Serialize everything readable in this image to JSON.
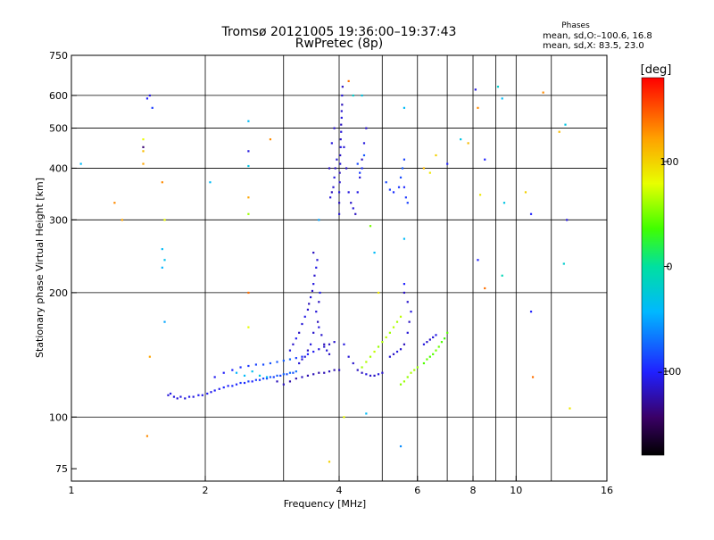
{
  "title": {
    "line1": "Tromsø 20121005 19:36:00–19:37:43",
    "line2": "RwPretec (8p)"
  },
  "phase_stats": {
    "heading": "Phases",
    "line1": "mean, sd,O:–100.6, 16.8",
    "line2": "mean, sd,X:  83.5, 23.0"
  },
  "colorbar": {
    "label": "[deg]",
    "range": [
      -180,
      180
    ],
    "ticks": [
      {
        "value": 100,
        "label": "100"
      },
      {
        "value": 0,
        "label": "0"
      },
      {
        "value": -100,
        "label": "–100"
      }
    ]
  },
  "chart_data": {
    "type": "scatter",
    "xlabel": "Frequency [MHz]",
    "ylabel": "Stationary phase Virtual Height [km]",
    "xscale": "log",
    "yscale": "log",
    "xlim": [
      1,
      16
    ],
    "ylim": [
      70,
      750
    ],
    "xticks": [
      {
        "value": 1,
        "label": "1"
      },
      {
        "value": 2,
        "label": "2"
      },
      {
        "value": 4,
        "label": "4"
      },
      {
        "value": 6,
        "label": "6"
      },
      {
        "value": 8,
        "label": "8"
      },
      {
        "value": 10,
        "label": "10"
      },
      {
        "value": 16,
        "label": "16"
      }
    ],
    "xgrid": [
      2,
      3,
      4,
      5,
      6,
      7,
      8,
      9,
      10,
      12
    ],
    "yticks": [
      {
        "value": 75,
        "label": "75"
      },
      {
        "value": 100,
        "label": "100"
      },
      {
        "value": 200,
        "label": "200"
      },
      {
        "value": 300,
        "label": "300"
      },
      {
        "value": 400,
        "label": "400"
      },
      {
        "value": 500,
        "label": "500"
      },
      {
        "value": 600,
        "label": "600"
      },
      {
        "value": 750,
        "label": "750"
      }
    ],
    "ygrid": [
      100,
      200,
      300,
      400,
      500,
      600
    ],
    "points": [
      [
        1.65,
        113,
        -112
      ],
      [
        1.67,
        114,
        -108
      ],
      [
        1.7,
        112,
        -110
      ],
      [
        1.73,
        111,
        -112
      ],
      [
        1.76,
        112,
        -109
      ],
      [
        1.8,
        111,
        -111
      ],
      [
        1.84,
        112,
        -106
      ],
      [
        1.88,
        112,
        -110
      ],
      [
        1.93,
        113,
        -104
      ],
      [
        1.97,
        113,
        -108
      ],
      [
        2.02,
        114,
        -103
      ],
      [
        2.06,
        115,
        -107
      ],
      [
        2.1,
        116,
        -101
      ],
      [
        2.15,
        117,
        -105
      ],
      [
        2.2,
        118,
        -98
      ],
      [
        2.25,
        119,
        -102
      ],
      [
        2.3,
        119,
        -95
      ],
      [
        2.35,
        120,
        -99
      ],
      [
        2.4,
        121,
        -92
      ],
      [
        2.45,
        121,
        -97
      ],
      [
        2.5,
        122,
        -90
      ],
      [
        2.55,
        122,
        -100
      ],
      [
        2.6,
        123,
        -88
      ],
      [
        2.65,
        123,
        -95
      ],
      [
        2.7,
        124,
        -85
      ],
      [
        2.75,
        124,
        -92
      ],
      [
        2.8,
        125,
        -80
      ],
      [
        2.85,
        125,
        -90
      ],
      [
        2.9,
        126,
        -78
      ],
      [
        2.95,
        126,
        -88
      ],
      [
        3.0,
        127,
        -75
      ],
      [
        3.05,
        127,
        -85
      ],
      [
        3.1,
        128,
        -72
      ],
      [
        3.15,
        128,
        -82
      ],
      [
        3.2,
        129,
        -70
      ],
      [
        2.1,
        125,
        -105
      ],
      [
        2.2,
        128,
        -102
      ],
      [
        2.3,
        130,
        -98
      ],
      [
        2.4,
        132,
        -95
      ],
      [
        2.5,
        133,
        -92
      ],
      [
        2.6,
        134,
        -88
      ],
      [
        2.7,
        134,
        -85
      ],
      [
        2.8,
        135,
        -82
      ],
      [
        2.9,
        136,
        -80
      ],
      [
        3.0,
        137,
        -78
      ],
      [
        3.1,
        138,
        -75
      ],
      [
        3.2,
        139,
        -90
      ],
      [
        3.3,
        140,
        -95
      ],
      [
        3.4,
        142,
        -100
      ],
      [
        3.5,
        144,
        -105
      ],
      [
        3.6,
        146,
        -110
      ],
      [
        3.7,
        148,
        -115
      ],
      [
        3.8,
        150,
        -118
      ],
      [
        3.9,
        152,
        -115
      ],
      [
        2.35,
        128,
        -45
      ],
      [
        2.45,
        126,
        -40
      ],
      [
        2.55,
        129,
        -35
      ],
      [
        2.65,
        126,
        -30
      ],
      [
        2.75,
        125,
        -38
      ],
      [
        2.9,
        122,
        -120
      ],
      [
        3.0,
        120,
        -118
      ],
      [
        3.1,
        122,
        -125
      ],
      [
        3.2,
        124,
        -122
      ],
      [
        3.3,
        125,
        -118
      ],
      [
        3.4,
        126,
        -124
      ],
      [
        3.5,
        127,
        -120
      ],
      [
        3.6,
        128,
        -126
      ],
      [
        3.7,
        128,
        -122
      ],
      [
        3.8,
        129,
        -119
      ],
      [
        3.9,
        130,
        -123
      ],
      [
        4.0,
        130,
        -120
      ],
      [
        3.1,
        145,
        -110
      ],
      [
        3.15,
        150,
        -115
      ],
      [
        3.2,
        155,
        -105
      ],
      [
        3.25,
        160,
        -118
      ],
      [
        3.3,
        168,
        -112
      ],
      [
        3.35,
        175,
        -108
      ],
      [
        3.4,
        182,
        -115
      ],
      [
        3.42,
        188,
        -120
      ],
      [
        3.45,
        195,
        -112
      ],
      [
        3.48,
        202,
        -118
      ],
      [
        3.5,
        210,
        -110
      ],
      [
        3.52,
        220,
        -115
      ],
      [
        3.55,
        230,
        -108
      ],
      [
        3.57,
        240,
        -112
      ],
      [
        3.5,
        250,
        -118
      ],
      [
        3.6,
        165,
        -110
      ],
      [
        3.65,
        158,
        -115
      ],
      [
        3.7,
        150,
        -120
      ],
      [
        3.75,
        145,
        -112
      ],
      [
        3.8,
        142,
        -118
      ],
      [
        3.55,
        180,
        -112
      ],
      [
        3.6,
        190,
        -118
      ],
      [
        3.62,
        200,
        -105
      ],
      [
        3.58,
        170,
        -120
      ],
      [
        3.5,
        160,
        -115
      ],
      [
        3.45,
        150,
        -110
      ],
      [
        3.4,
        145,
        -118
      ],
      [
        3.35,
        140,
        -112
      ],
      [
        3.3,
        138,
        -116
      ],
      [
        3.25,
        135,
        -112
      ],
      [
        4.0,
        310,
        -112
      ],
      [
        4.0,
        330,
        -118
      ],
      [
        4.0,
        350,
        -110
      ],
      [
        4.01,
        370,
        -115
      ],
      [
        4.01,
        390,
        -120
      ],
      [
        4.02,
        410,
        -112
      ],
      [
        4.02,
        430,
        -118
      ],
      [
        4.03,
        450,
        -110
      ],
      [
        4.03,
        470,
        -116
      ],
      [
        4.04,
        490,
        -112
      ],
      [
        4.04,
        510,
        -118
      ],
      [
        4.05,
        530,
        -110
      ],
      [
        4.05,
        550,
        -115
      ],
      [
        4.06,
        570,
        -120
      ],
      [
        4.06,
        600,
        -112
      ],
      [
        4.07,
        630,
        -118
      ],
      [
        3.95,
        420,
        -112
      ],
      [
        3.92,
        400,
        -118
      ],
      [
        3.9,
        380,
        -110
      ],
      [
        3.88,
        360,
        -115
      ],
      [
        3.85,
        350,
        -120
      ],
      [
        3.82,
        340,
        -112
      ],
      [
        3.8,
        400,
        -118
      ],
      [
        3.85,
        460,
        -110
      ],
      [
        3.9,
        500,
        -115
      ],
      [
        4.1,
        450,
        -112
      ],
      [
        4.15,
        400,
        -118
      ],
      [
        4.2,
        350,
        -110
      ],
      [
        4.25,
        330,
        -116
      ],
      [
        4.3,
        320,
        -112
      ],
      [
        4.35,
        310,
        -118
      ],
      [
        4.4,
        350,
        -108
      ],
      [
        4.45,
        380,
        -112
      ],
      [
        4.5,
        420,
        -118
      ],
      [
        4.55,
        460,
        -110
      ],
      [
        4.6,
        500,
        -115
      ],
      [
        4.5,
        400,
        -95
      ],
      [
        4.45,
        390,
        -90
      ],
      [
        4.4,
        410,
        -85
      ],
      [
        4.55,
        430,
        -80
      ],
      [
        4.1,
        150,
        -110
      ],
      [
        4.2,
        140,
        -112
      ],
      [
        4.3,
        135,
        -115
      ],
      [
        4.4,
        130,
        -118
      ],
      [
        4.5,
        128,
        -120
      ],
      [
        4.6,
        127,
        -110
      ],
      [
        4.7,
        126,
        -115
      ],
      [
        4.8,
        126,
        -118
      ],
      [
        4.9,
        127,
        -110
      ],
      [
        5.0,
        128,
        -115
      ],
      [
        4.5,
        132,
        60
      ],
      [
        4.6,
        136,
        65
      ],
      [
        4.7,
        140,
        62
      ],
      [
        4.8,
        144,
        70
      ],
      [
        4.9,
        148,
        58
      ],
      [
        5.0,
        152,
        64
      ],
      [
        5.1,
        156,
        68
      ],
      [
        5.2,
        160,
        60
      ],
      [
        5.3,
        165,
        66
      ],
      [
        5.4,
        170,
        62
      ],
      [
        5.5,
        175,
        68
      ],
      [
        5.2,
        140,
        -112
      ],
      [
        5.3,
        142,
        -118
      ],
      [
        5.4,
        144,
        -110
      ],
      [
        5.5,
        146,
        -115
      ],
      [
        5.6,
        150,
        -120
      ],
      [
        5.7,
        160,
        -112
      ],
      [
        5.75,
        170,
        -118
      ],
      [
        5.8,
        180,
        -110
      ],
      [
        5.7,
        190,
        -115
      ],
      [
        5.6,
        200,
        -118
      ],
      [
        5.5,
        120,
        55
      ],
      [
        5.6,
        122,
        60
      ],
      [
        5.7,
        125,
        58
      ],
      [
        5.8,
        128,
        64
      ],
      [
        5.9,
        130,
        62
      ],
      [
        6.0,
        132,
        58
      ],
      [
        5.5,
        380,
        -85
      ],
      [
        5.55,
        400,
        -80
      ],
      [
        5.6,
        420,
        -88
      ],
      [
        5.45,
        360,
        -92
      ],
      [
        5.3,
        350,
        -95
      ],
      [
        5.2,
        355,
        -90
      ],
      [
        5.1,
        370,
        -85
      ],
      [
        5.6,
        360,
        -98
      ],
      [
        5.65,
        340,
        -92
      ],
      [
        5.7,
        330,
        -88
      ],
      [
        6.2,
        135,
        40
      ],
      [
        6.3,
        138,
        45
      ],
      [
        6.4,
        140,
        38
      ],
      [
        6.5,
        142,
        42
      ],
      [
        6.6,
        145,
        50
      ],
      [
        6.7,
        148,
        46
      ],
      [
        6.8,
        152,
        40
      ],
      [
        6.9,
        155,
        35
      ],
      [
        7.0,
        160,
        42
      ],
      [
        6.2,
        150,
        -110
      ],
      [
        6.3,
        152,
        -115
      ],
      [
        6.4,
        154,
        -118
      ],
      [
        6.5,
        156,
        -112
      ],
      [
        6.6,
        158,
        -108
      ],
      [
        1.45,
        470,
        80
      ],
      [
        1.45,
        450,
        -140
      ],
      [
        1.45,
        440,
        110
      ],
      [
        1.45,
        410,
        120
      ],
      [
        1.5,
        600,
        -110
      ],
      [
        1.52,
        560,
        -90
      ],
      [
        1.48,
        590,
        -100
      ],
      [
        1.05,
        410,
        -40
      ],
      [
        1.25,
        330,
        130
      ],
      [
        1.3,
        300,
        120
      ],
      [
        1.6,
        370,
        130
      ],
      [
        1.62,
        300,
        80
      ],
      [
        1.6,
        255,
        -40
      ],
      [
        1.62,
        240,
        -35
      ],
      [
        1.6,
        230,
        -45
      ],
      [
        1.62,
        170,
        -50
      ],
      [
        1.5,
        140,
        120
      ],
      [
        1.48,
        90,
        130
      ],
      [
        2.5,
        520,
        -40
      ],
      [
        2.5,
        440,
        -110
      ],
      [
        2.5,
        405,
        -30
      ],
      [
        2.5,
        340,
        120
      ],
      [
        2.5,
        310,
        60
      ],
      [
        2.5,
        200,
        140
      ],
      [
        2.5,
        165,
        80
      ],
      [
        2.8,
        470,
        130
      ],
      [
        2.05,
        370,
        -40
      ],
      [
        4.2,
        650,
        140
      ],
      [
        4.3,
        600,
        -20
      ],
      [
        4.5,
        600,
        -30
      ],
      [
        4.7,
        290,
        50
      ],
      [
        4.8,
        250,
        -40
      ],
      [
        4.9,
        200,
        90
      ],
      [
        5.6,
        560,
        -40
      ],
      [
        5.6,
        270,
        -40
      ],
      [
        5.6,
        210,
        -100
      ],
      [
        5.5,
        85,
        -60
      ],
      [
        6.2,
        400,
        110
      ],
      [
        6.4,
        390,
        90
      ],
      [
        6.6,
        430,
        100
      ],
      [
        7.0,
        410,
        -100
      ],
      [
        7.5,
        470,
        -30
      ],
      [
        7.8,
        460,
        110
      ],
      [
        8.1,
        620,
        -110
      ],
      [
        8.2,
        560,
        130
      ],
      [
        8.3,
        345,
        90
      ],
      [
        8.5,
        420,
        -100
      ],
      [
        8.2,
        240,
        -100
      ],
      [
        8.5,
        205,
        140
      ],
      [
        9.1,
        630,
        -20
      ],
      [
        9.3,
        590,
        -40
      ],
      [
        9.4,
        330,
        -30
      ],
      [
        9.3,
        220,
        -10
      ],
      [
        10.5,
        350,
        100
      ],
      [
        10.8,
        310,
        -100
      ],
      [
        10.8,
        180,
        -100
      ],
      [
        10.9,
        125,
        140
      ],
      [
        11.5,
        610,
        130
      ],
      [
        12.5,
        490,
        110
      ],
      [
        12.9,
        510,
        -30
      ],
      [
        12.8,
        235,
        -20
      ],
      [
        13.0,
        300,
        -110
      ],
      [
        13.2,
        105,
        90
      ],
      [
        4.1,
        100,
        80
      ],
      [
        3.8,
        78,
        100
      ],
      [
        4.6,
        102,
        -40
      ],
      [
        3.6,
        300,
        -50
      ]
    ]
  }
}
